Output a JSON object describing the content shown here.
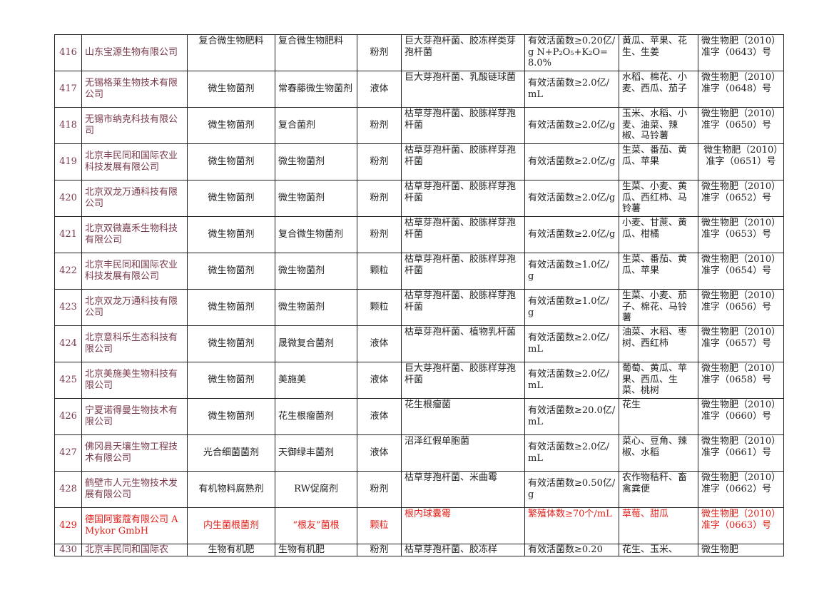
{
  "rows": [
    {
      "no": "416",
      "company": "山东宝源生物有限公司",
      "category": "复合微生物肥料",
      "product": "复合微生物肥料",
      "form": "粉剂",
      "strains": "巨大芽孢杆菌、胶冻样类芽孢杆菌",
      "content": "有效活菌数≥0.20亿/g N+P₂O₅+K₂O=8.0%",
      "crops": "黄瓜、苹果、花生、生姜",
      "reg": "微生物肥（2010）准字（0643）号"
    },
    {
      "no": "417",
      "company": "无锡格莱生物技术有限公司",
      "category": "微生物菌剂",
      "product": "常春藤微生物菌剂",
      "form": "液体",
      "strains": "巨大芽孢杆菌、乳酸链球菌",
      "content": "有效活菌数≥2.0亿/mL",
      "crops": "水稻、棉花、小麦、西瓜、茄子",
      "reg": "微生物肥（2010）准字（0648）号"
    },
    {
      "no": "418",
      "company": "无锡市纳克科技有限公司",
      "category": "微生物菌剂",
      "product": "复合菌剂",
      "form": "粉剂",
      "strains": "枯草芽孢杆菌、胶胨样芽孢杆菌",
      "content": "有效活菌数≥2.0亿/g",
      "crops": "玉米、水稻、小麦、油菜、辣椒、马铃薯",
      "reg": "微生物肥（2010）准字（0650）号"
    },
    {
      "no": "419",
      "company": "北京丰民同和国际农业科技发展有限公司",
      "category": "微生物菌剂",
      "product": "微生物菌剂",
      "form": "粉剂",
      "strains": "枯草芽孢杆菌、胶胨样芽孢杆菌",
      "content": "有效活菌数≥2.0亿/g",
      "crops": "生菜、番茄、黄瓜、苹果",
      "reg": "微生物肥（2010）准字（0651）号"
    },
    {
      "no": "420",
      "company": "北京双龙万通科技有限公司",
      "category": "微生物菌剂",
      "product": "微生物菌剂",
      "form": "粉剂",
      "strains": "枯草芽孢杆菌、胶胨样芽孢杆菌",
      "content": "有效活菌数≥2.0亿/g",
      "crops": "生菜、小麦、黄瓜、西红柿、马铃薯",
      "reg": "微生物肥（2010）准字（0652）号"
    },
    {
      "no": "421",
      "company": "北京双微嘉禾生物科技有限公司",
      "category": "微生物菌剂",
      "product": "复合微生物菌剂",
      "form": "粉剂",
      "strains": "枯草芽孢杆菌、胶胨样芽孢杆菌",
      "content": "有效活菌数≥2.0亿/g",
      "crops": "小麦、甘蔗、黄瓜、柑橘",
      "reg": "微生物肥（2010）准字（0653）号"
    },
    {
      "no": "422",
      "company": "北京丰民同和国际农业科技发展有限公司",
      "category": "微生物菌剂",
      "product": "微生物菌剂",
      "form": "颗粒",
      "strains": "枯草芽孢杆菌、胶胨样芽孢杆菌",
      "content": "有效活菌数≥1.0亿/ g",
      "crops": "生菜、番茄、黄瓜、苹果",
      "reg": "微生物肥（2010）准字（0654）号"
    },
    {
      "no": "423",
      "company": "北京双龙万通科技有限公司",
      "category": "微生物菌剂",
      "product": "微生物菌剂",
      "form": "颗粒",
      "strains": "枯草芽孢杆菌、胶胨样芽孢杆菌",
      "content": "有效活菌数≥1.0亿/ g",
      "crops": "生菜、小麦、茄子、棉花、马铃薯",
      "reg": "微生物肥（2010）准字（0656）号"
    },
    {
      "no": "424",
      "company": "北京意科乐生态科技有限公司",
      "category": "微生物菌剂",
      "product": "晟微复合菌剂",
      "form": "液体",
      "strains": "枯草芽孢杆菌、植物乳杆菌",
      "content": "有效活菌数≥2.0亿/mL",
      "crops": "油菜、水稻、枣树、西红柿",
      "reg": "微生物肥（2010）准字（0657）号"
    },
    {
      "no": "425",
      "company": "北京美施美生物科技有限公司",
      "category": "微生物菌剂",
      "product": "美施美",
      "form": "液体",
      "strains": "巨大芽孢杆菌、胶胨样芽孢杆菌",
      "content": "有效活菌数≥2.0亿/mL",
      "crops": "葡萄、黄瓜、苹果、西瓜、生菜、桃树",
      "reg": "微生物肥（2010）准字（0658）号"
    },
    {
      "no": "426",
      "company": "宁夏诺得曼生物技术有限公司",
      "category": "微生物菌剂",
      "product": "花生根瘤菌剂",
      "form": "液体",
      "strains": "花生根瘤菌",
      "content": "有效活菌数≥20.0亿/mL",
      "crops": "花生",
      "reg": "微生物肥（2010）准字（0660）号"
    },
    {
      "no": "427",
      "company": "佛冈县天壤生物工程技术有限公司",
      "category": "光合细菌菌剂",
      "product": "天御绿丰菌剂",
      "form": "液体",
      "strains": "沼泽红假单胞菌",
      "content": "有效活菌数≥2.0亿/mL",
      "crops": "菜心、豆角、辣椒、水稻",
      "reg": "微生物肥（2010）准字（0661）号"
    },
    {
      "no": "428",
      "company": "鹤壁市人元生物技术发展有限公司",
      "category": "有机物料腐熟剂",
      "product": "RW促腐剂",
      "form": "粉剂",
      "strains": "枯草芽孢杆菌、米曲霉",
      "content": "有效活菌数≥0.50亿/g",
      "crops": "农作物秸秆、畜禽粪便",
      "reg": "微生物肥（2010）准字（0662）号"
    },
    {
      "no": "429",
      "company": "德国阿蜜蔻有限公司 AMykor GmbH",
      "category": "内生菌根菌剂",
      "product": "“根友”菌根",
      "form": "颗粒",
      "strains": "根内球囊霉",
      "content": "繁殖体数≥70个/mL",
      "crops": "草莓、甜瓜",
      "reg": "微生物肥（2010）准字（0663）号"
    },
    {
      "no": "430",
      "company": "北京丰民同和国际农",
      "category": "生物有机肥",
      "product": "生物有机肥",
      "form": "粉剂",
      "strains": "枯草芽孢杆菌、胶冻样",
      "content": "有效活菌数≥0.20",
      "crops": "花生、玉米、",
      "reg": "微生物肥"
    }
  ]
}
